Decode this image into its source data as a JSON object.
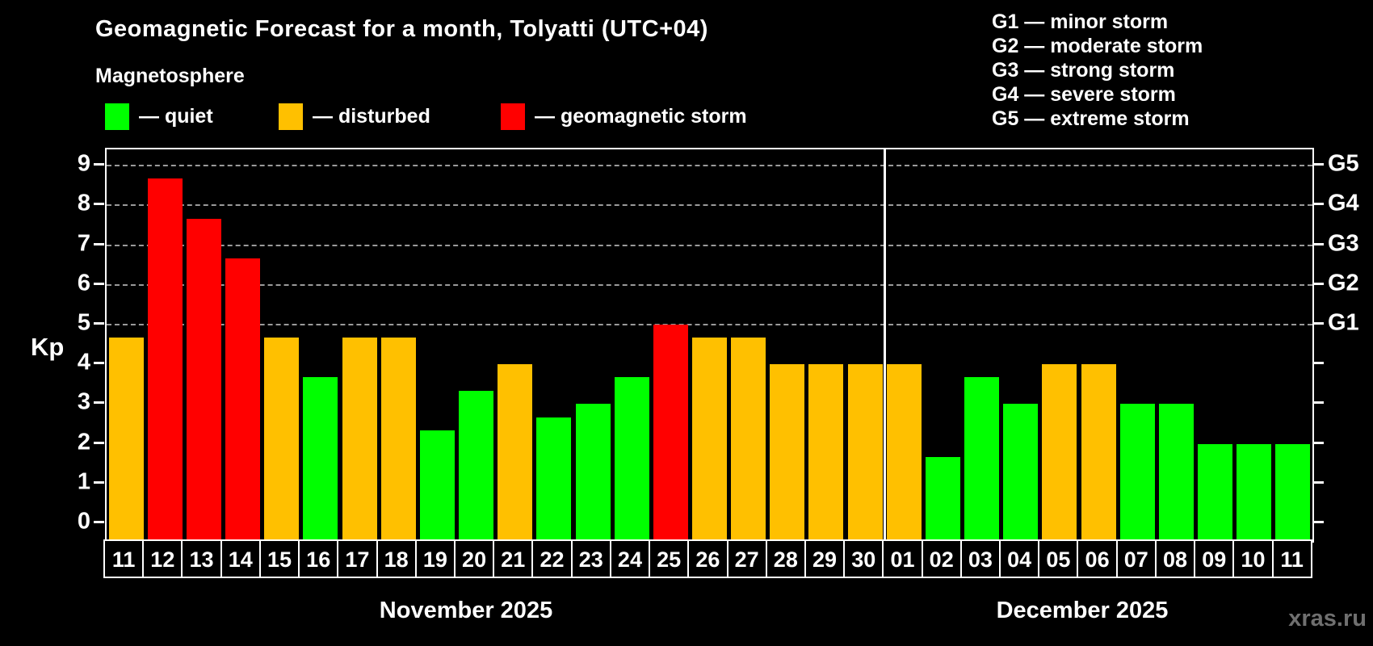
{
  "header": {
    "legend": [
      {
        "key": "quiet",
        "label": "— quiet",
        "color": "#00ff00"
      },
      {
        "key": "disturbed",
        "label": "— disturbed",
        "color": "#ffc000"
      },
      {
        "key": "storm",
        "label": "— geomagnetic storm",
        "color": "#ff0000"
      }
    ]
  },
  "storm_scale": {
    "lines": [
      "G1 — minor storm",
      "G2 — moderate storm",
      "G3 — strong storm",
      "G4 — severe storm",
      "G5 — extreme storm"
    ]
  },
  "watermark": "xras.ru",
  "chart_data": {
    "type": "bar",
    "title": "Geomagnetic Forecast for a month, Tolyatti (UTC+04)",
    "subtitle": "Magnetosphere",
    "ylabel": "Kp",
    "ylim": [
      0,
      9
    ],
    "yticks": [
      0,
      1,
      2,
      3,
      4,
      5,
      6,
      7,
      8,
      9
    ],
    "gridlines_at": [
      5,
      6,
      7,
      8,
      9
    ],
    "grid": "dashed horizontal at storm levels only",
    "right_axis_labels": [
      {
        "label": "G1",
        "value": 5
      },
      {
        "label": "G2",
        "value": 6
      },
      {
        "label": "G3",
        "value": 7
      },
      {
        "label": "G4",
        "value": 8
      },
      {
        "label": "G5",
        "value": 9
      }
    ],
    "status_colors": {
      "quiet": "#00ff00",
      "disturbed": "#ffc000",
      "storm": "#ff0000"
    },
    "months": [
      {
        "name": "November 2025",
        "days": [
          {
            "day": "11",
            "kp": 4.67,
            "status": "disturbed"
          },
          {
            "day": "12",
            "kp": 8.67,
            "status": "storm"
          },
          {
            "day": "13",
            "kp": 7.67,
            "status": "storm"
          },
          {
            "day": "14",
            "kp": 6.67,
            "status": "storm"
          },
          {
            "day": "15",
            "kp": 4.67,
            "status": "disturbed"
          },
          {
            "day": "16",
            "kp": 3.67,
            "status": "quiet"
          },
          {
            "day": "17",
            "kp": 4.67,
            "status": "disturbed"
          },
          {
            "day": "18",
            "kp": 4.67,
            "status": "disturbed"
          },
          {
            "day": "19",
            "kp": 2.33,
            "status": "quiet"
          },
          {
            "day": "20",
            "kp": 3.33,
            "status": "quiet"
          },
          {
            "day": "21",
            "kp": 4.0,
            "status": "disturbed"
          },
          {
            "day": "22",
            "kp": 2.67,
            "status": "quiet"
          },
          {
            "day": "23",
            "kp": 3.0,
            "status": "quiet"
          },
          {
            "day": "24",
            "kp": 3.67,
            "status": "quiet"
          },
          {
            "day": "25",
            "kp": 5.0,
            "status": "storm"
          },
          {
            "day": "26",
            "kp": 4.67,
            "status": "disturbed"
          },
          {
            "day": "27",
            "kp": 4.67,
            "status": "disturbed"
          },
          {
            "day": "28",
            "kp": 4.0,
            "status": "disturbed"
          },
          {
            "day": "29",
            "kp": 4.0,
            "status": "disturbed"
          },
          {
            "day": "30",
            "kp": 4.0,
            "status": "disturbed"
          }
        ]
      },
      {
        "name": "December 2025",
        "days": [
          {
            "day": "01",
            "kp": 4.0,
            "status": "disturbed"
          },
          {
            "day": "02",
            "kp": 1.67,
            "status": "quiet"
          },
          {
            "day": "03",
            "kp": 3.67,
            "status": "quiet"
          },
          {
            "day": "04",
            "kp": 3.0,
            "status": "quiet"
          },
          {
            "day": "05",
            "kp": 4.0,
            "status": "disturbed"
          },
          {
            "day": "06",
            "kp": 4.0,
            "status": "disturbed"
          },
          {
            "day": "07",
            "kp": 3.0,
            "status": "quiet"
          },
          {
            "day": "08",
            "kp": 3.0,
            "status": "quiet"
          },
          {
            "day": "09",
            "kp": 2.0,
            "status": "quiet"
          },
          {
            "day": "10",
            "kp": 2.0,
            "status": "quiet"
          },
          {
            "day": "11",
            "kp": 2.0,
            "status": "quiet"
          }
        ]
      }
    ]
  }
}
